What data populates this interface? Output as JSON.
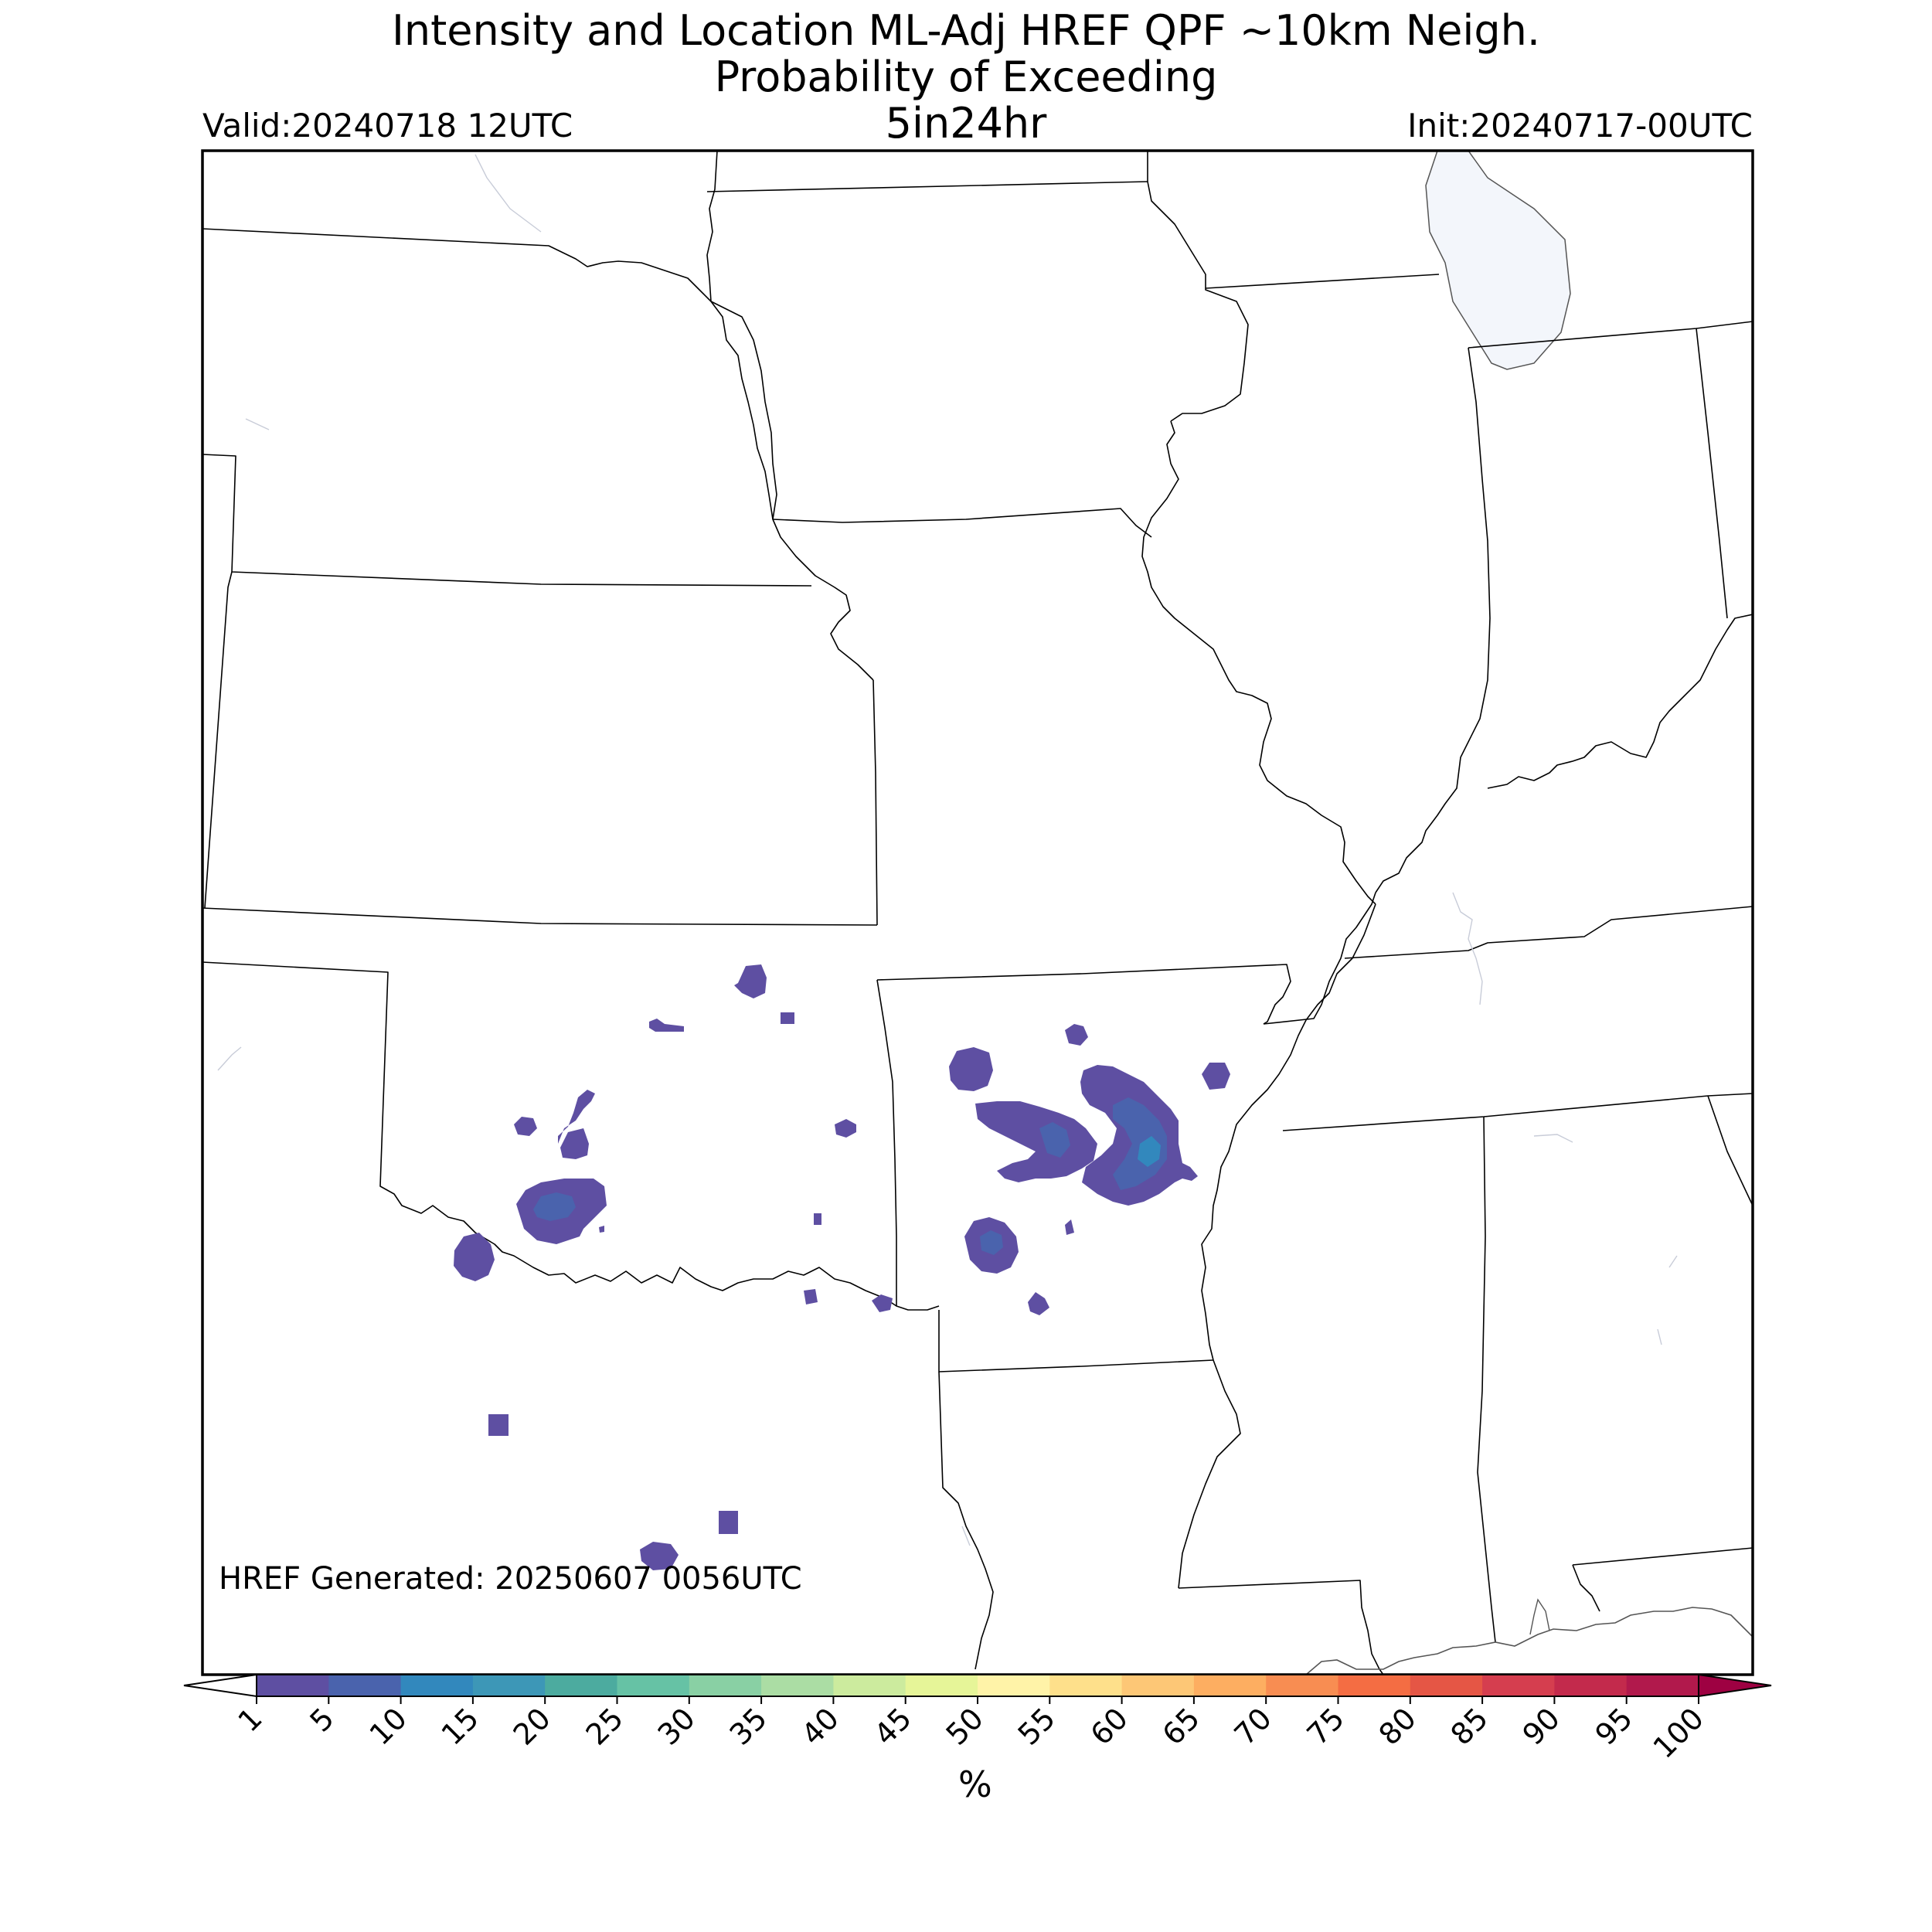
{
  "title": {
    "line1": "Intensity and Location ML-Adj HREF QPF ~10km Neigh.",
    "line2": "Probability of Exceeding",
    "line3": "5in24hr"
  },
  "valid_label": "Valid:20240718 12UTC",
  "init_label": "Init:20240717-00UTC",
  "generated_label": "HREF Generated: 20250607 0056UTC",
  "colorbar": {
    "unit": "%",
    "ticks": [
      "1",
      "5",
      "10",
      "15",
      "20",
      "25",
      "30",
      "35",
      "40",
      "45",
      "50",
      "55",
      "60",
      "65",
      "70",
      "75",
      "80",
      "85",
      "90",
      "95",
      "100"
    ],
    "colors": [
      "#5e4fa2",
      "#4a63ad",
      "#3288bd",
      "#3d97b7",
      "#4cab9f",
      "#66c2a5",
      "#89d0a4",
      "#abdda4",
      "#cceb9e",
      "#e6f598",
      "#fff3a8",
      "#fee08b",
      "#fdc776",
      "#fdae61",
      "#f88d52",
      "#f46d43",
      "#e55645",
      "#d53e4f",
      "#c32a4c",
      "#b1194c"
    ],
    "over_color": "#9e0142",
    "under_color": "#ffffff"
  },
  "map": {
    "lake_color": "#f3f6fb",
    "land_color": "#ffffff",
    "border_color": "#000000"
  },
  "probability_blobs": [
    {
      "region": "southwestern Oklahoma",
      "level": "5"
    },
    {
      "region": "west-central Arkansas",
      "level": "10"
    },
    {
      "region": "central Arkansas",
      "level": "10"
    },
    {
      "region": "scattered cells Oklahoma/Arkansas/Texas",
      "level": "1"
    }
  ]
}
